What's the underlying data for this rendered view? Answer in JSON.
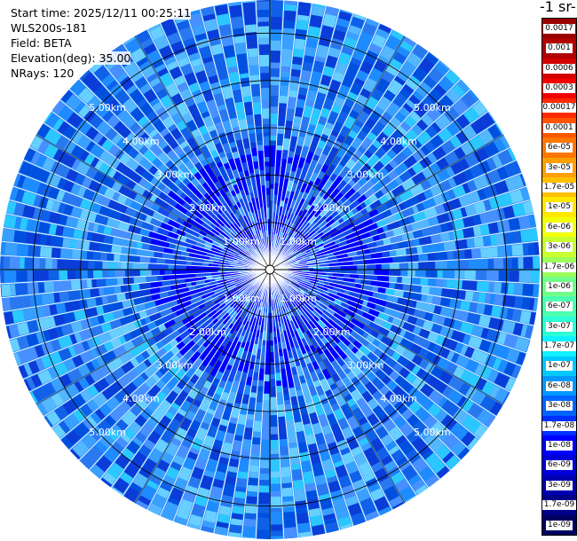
{
  "header": {
    "start_time": "Start time: 2025/12/11 00:25:11",
    "instrument": "WLS200s-181",
    "field": "Field: BETA",
    "elevation": "Elevation(deg): 35.00",
    "nrays": "NRays: 120"
  },
  "colorbar": {
    "title": "-1 sr-",
    "labels": [
      "0.0017",
      "0.001",
      "0.0006",
      "0.0003",
      "0.00017",
      "0.0001",
      "6e-05",
      "3e-05",
      "1.7e-05",
      "1e-05",
      "6e-06",
      "3e-06",
      "1.7e-06",
      "1e-06",
      "6e-07",
      "3e-07",
      "1.7e-07",
      "1e-07",
      "6e-08",
      "3e-08",
      "1.7e-08",
      "1e-08",
      "6e-09",
      "3e-09",
      "1.7e-09",
      "1e-09"
    ],
    "colors": [
      "#9a0000",
      "#b00000",
      "#d40000",
      "#f00000",
      "#ff2a00",
      "#ff5500",
      "#ff7700",
      "#ffa000",
      "#ffc000",
      "#ffe800",
      "#f2ff0a",
      "#c8ff30",
      "#9cff5c",
      "#70ff8a",
      "#4cffb0",
      "#2cffd8",
      "#10f0ff",
      "#00c8ff",
      "#0098ff",
      "#0064ff",
      "#0030ff",
      "#0000ff",
      "#0000d8",
      "#0000b0",
      "#00008a",
      "#000060"
    ]
  },
  "ppi": {
    "range_labels": [
      "1.00km",
      "2.00km",
      "3.00km",
      "4.00km",
      "5.00km"
    ],
    "max_range_km": 5.7,
    "nrays": 120
  }
}
